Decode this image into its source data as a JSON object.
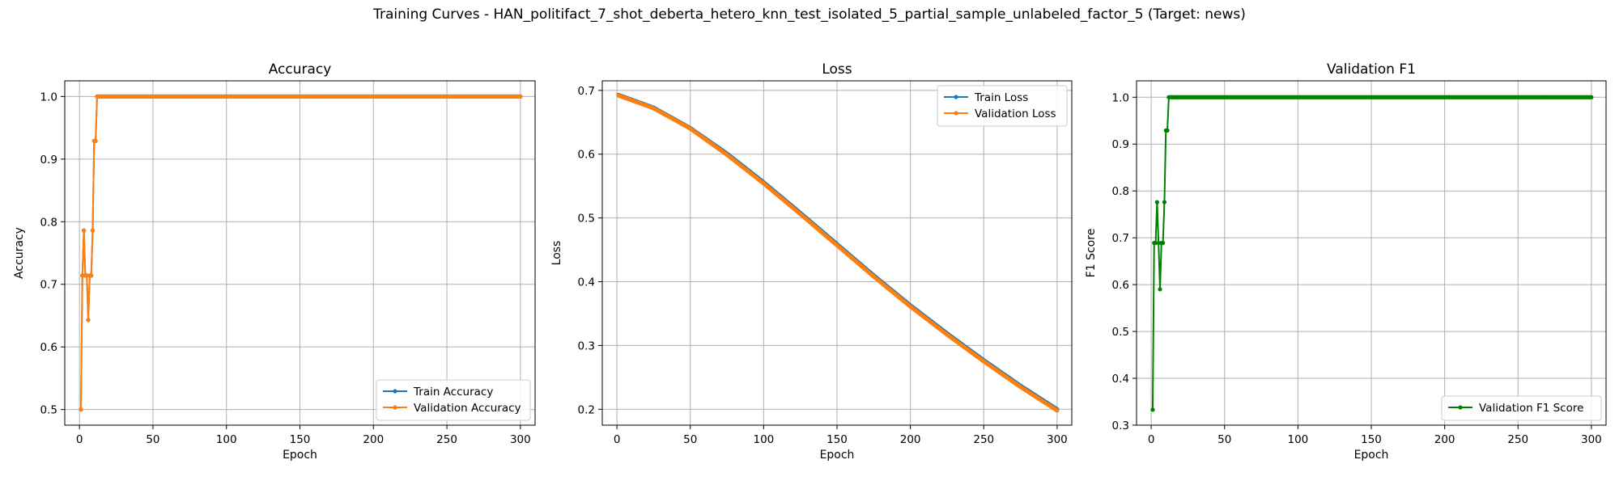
{
  "figure_title": "Training Curves - HAN_politifact_7_shot_deberta_hetero_knn_test_isolated_5_partial_sample_unlabeled_factor_5 (Target: news)",
  "colors": {
    "blue": "#1f77b4",
    "orange": "#ff7f0e",
    "green": "#008000",
    "grid": "#b0b0b0"
  },
  "chart_data": [
    {
      "type": "line",
      "title": "Accuracy",
      "xlabel": "Epoch",
      "ylabel": "Accuracy",
      "xlim": [
        -10,
        310
      ],
      "ylim": [
        0.475,
        1.025
      ],
      "xticks": [
        0,
        50,
        100,
        150,
        200,
        250,
        300
      ],
      "yticks": [
        0.5,
        0.6,
        0.7,
        0.8,
        0.9,
        1.0
      ],
      "ytick_labels": [
        "0.5",
        "0.6",
        "0.7",
        "0.8",
        "0.9",
        "1.0"
      ],
      "grid": true,
      "legend_position": "lower right",
      "series": [
        {
          "name": "Train Accuracy",
          "color": "#1f77b4",
          "x": [
            1,
            2,
            3,
            4,
            5,
            6,
            7,
            8,
            9,
            10,
            11,
            12,
            300
          ],
          "y": [
            0.5,
            0.714,
            0.786,
            0.714,
            0.714,
            0.643,
            0.714,
            0.714,
            0.786,
            0.929,
            0.929,
            1.0,
            1.0
          ]
        },
        {
          "name": "Validation Accuracy",
          "color": "#ff7f0e",
          "x": [
            1,
            2,
            3,
            4,
            5,
            6,
            7,
            8,
            9,
            10,
            11,
            12,
            300
          ],
          "y": [
            0.5,
            0.714,
            0.786,
            0.714,
            0.714,
            0.643,
            0.714,
            0.714,
            0.786,
            0.929,
            0.929,
            1.0,
            1.0
          ]
        }
      ]
    },
    {
      "type": "line",
      "title": "Loss",
      "xlabel": "Epoch",
      "ylabel": "Loss",
      "xlim": [
        -10,
        310
      ],
      "ylim": [
        0.175,
        0.715
      ],
      "xticks": [
        0,
        50,
        100,
        150,
        200,
        250,
        300
      ],
      "yticks": [
        0.2,
        0.3,
        0.4,
        0.5,
        0.6,
        0.7
      ],
      "ytick_labels": [
        "0.2",
        "0.3",
        "0.4",
        "0.5",
        "0.6",
        "0.7"
      ],
      "grid": true,
      "legend_position": "upper right",
      "series": [
        {
          "name": "Train Loss",
          "color": "#1f77b4",
          "x": [
            1,
            25,
            50,
            75,
            100,
            125,
            150,
            175,
            200,
            225,
            250,
            275,
            300
          ],
          "y": [
            0.693,
            0.673,
            0.641,
            0.601,
            0.556,
            0.508,
            0.459,
            0.41,
            0.363,
            0.319,
            0.277,
            0.237,
            0.2
          ]
        },
        {
          "name": "Validation Loss",
          "color": "#ff7f0e",
          "x": [
            1,
            25,
            50,
            75,
            100,
            125,
            150,
            175,
            200,
            225,
            250,
            275,
            300
          ],
          "y": [
            0.692,
            0.672,
            0.64,
            0.599,
            0.554,
            0.506,
            0.457,
            0.408,
            0.361,
            0.317,
            0.275,
            0.235,
            0.198
          ]
        }
      ]
    },
    {
      "type": "line",
      "title": "Validation F1",
      "xlabel": "Epoch",
      "ylabel": "F1 Score",
      "xlim": [
        -10,
        310
      ],
      "ylim": [
        0.3,
        1.035
      ],
      "xticks": [
        0,
        50,
        100,
        150,
        200,
        250,
        300
      ],
      "yticks": [
        0.3,
        0.4,
        0.5,
        0.6,
        0.7,
        0.8,
        0.9,
        1.0
      ],
      "ytick_labels": [
        "0.3",
        "0.4",
        "0.5",
        "0.6",
        "0.7",
        "0.8",
        "0.9",
        "1.0"
      ],
      "grid": true,
      "legend_position": "lower right",
      "series": [
        {
          "name": "Validation F1 Score",
          "color": "#008000",
          "x": [
            1,
            2,
            3,
            4,
            5,
            6,
            7,
            8,
            9,
            10,
            11,
            12,
            300
          ],
          "y": [
            0.333,
            0.689,
            0.689,
            0.776,
            0.689,
            0.59,
            0.689,
            0.689,
            0.776,
            0.929,
            0.929,
            1.0,
            1.0
          ]
        }
      ]
    }
  ]
}
